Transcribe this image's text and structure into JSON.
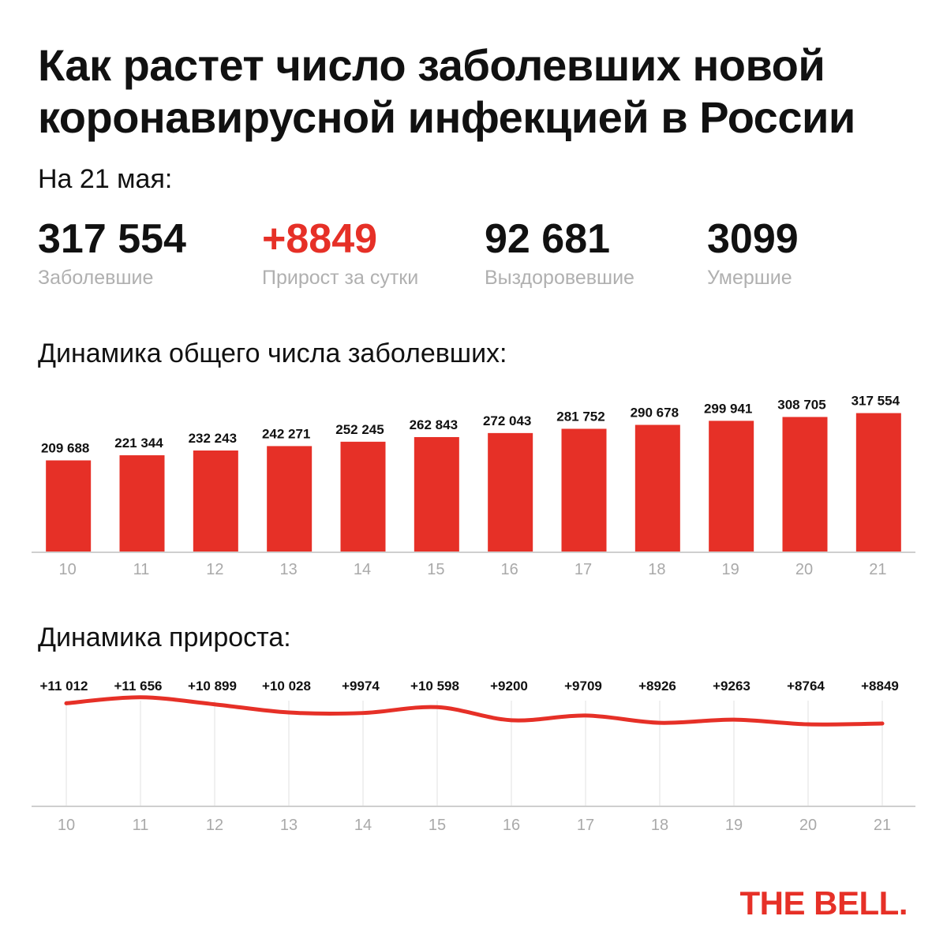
{
  "header": {
    "title_line1": "Как растет число заболевших новой",
    "title_line2": "коронавирусной инфекцией в России",
    "date": "На 21 мая:"
  },
  "stats": [
    {
      "value": "317 554",
      "label": "Заболевшие"
    },
    {
      "value": "+8849",
      "label": "Прирост за сутки"
    },
    {
      "value": "92 681",
      "label": "Выздоровевшие"
    },
    {
      "value": "3099",
      "label": "Умершие"
    }
  ],
  "colors": {
    "accent": "#e63027",
    "muted": "#b0b0b0"
  },
  "chart_data": [
    {
      "type": "bar",
      "title": "Динамика общего числа заболевших:",
      "categories": [
        "10",
        "11",
        "12",
        "13",
        "14",
        "15",
        "16",
        "17",
        "18",
        "19",
        "20",
        "21"
      ],
      "values": [
        209688,
        221344,
        232243,
        242271,
        252245,
        262843,
        272043,
        281752,
        290678,
        299941,
        308705,
        317554
      ],
      "value_labels": [
        "209 688",
        "221 344",
        "232 243",
        "242 271",
        "252 245",
        "262 843",
        "272 043",
        "281 752",
        "290 678",
        "299 941",
        "308 705",
        "317 554"
      ],
      "ylim": [
        0,
        360000
      ],
      "grid": false
    },
    {
      "type": "line",
      "title": "Динамика прироста:",
      "categories": [
        "10",
        "11",
        "12",
        "13",
        "14",
        "15",
        "16",
        "17",
        "18",
        "19",
        "20",
        "21"
      ],
      "values": [
        11012,
        11656,
        10899,
        10028,
        9974,
        10598,
        9200,
        9709,
        8926,
        9263,
        8764,
        8849
      ],
      "value_labels": [
        "+11 012",
        "+11 656",
        "+10 899",
        "+10 028",
        "+9974",
        "+10 598",
        "+9200",
        "+9709",
        "+8926",
        "+9263",
        "+8764",
        "+8849"
      ],
      "ylim": [
        0,
        14500
      ],
      "grid": true
    }
  ],
  "brand": {
    "logo": "THE BELL."
  }
}
